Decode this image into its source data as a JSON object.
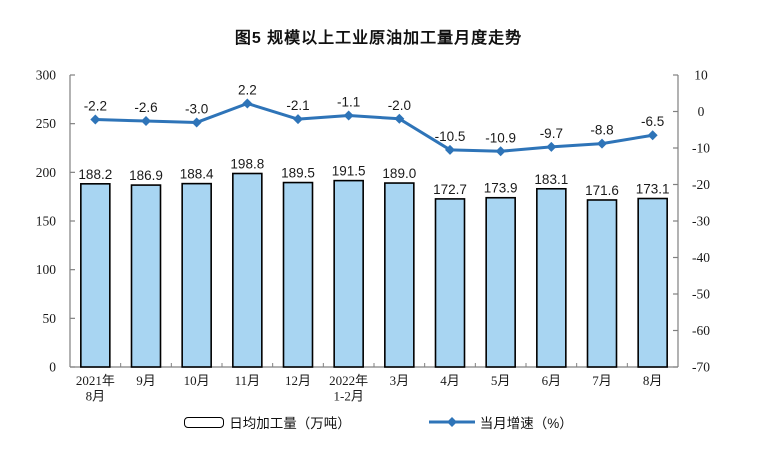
{
  "chart_data": {
    "type": "bar",
    "subtype": "combo-bar-line-dual-axis",
    "title": "图5 规模以上工业原油加工量月度走势",
    "categories": [
      "2021年\n8月",
      "9月",
      "10月",
      "11月",
      "12月",
      "2022年\n1-2月",
      "3月",
      "4月",
      "5月",
      "6月",
      "7月",
      "8月"
    ],
    "series": [
      {
        "name": "日均加工量（万吨）",
        "type": "bar",
        "axis": "left",
        "values": [
          188.2,
          186.9,
          188.4,
          198.8,
          189.5,
          191.5,
          189.0,
          172.7,
          173.9,
          183.1,
          171.6,
          173.1
        ]
      },
      {
        "name": "当月增速（%）",
        "type": "line",
        "axis": "right",
        "values": [
          -2.2,
          -2.6,
          -3.0,
          2.2,
          -2.1,
          -1.1,
          -2.0,
          -10.5,
          -10.9,
          -9.7,
          -8.8,
          -6.5
        ]
      }
    ],
    "left_axis": {
      "min": 0,
      "max": 300,
      "step": 50,
      "ticks": [
        300,
        250,
        200,
        150,
        100,
        50,
        0
      ]
    },
    "right_axis": {
      "min": -70,
      "max": 10,
      "step": 10,
      "ticks": [
        10,
        0,
        -10,
        -20,
        -30,
        -40,
        -50,
        -60,
        -70
      ]
    },
    "grid": false,
    "legend_position": "bottom",
    "colors": {
      "bar_fill": "#A8D5F2",
      "bar_stroke": "#000000",
      "line": "#2E74B8",
      "axis": "#808080",
      "text": "#1A1A1A",
      "title_text": "#111111",
      "background": "#FFFFFF"
    }
  }
}
